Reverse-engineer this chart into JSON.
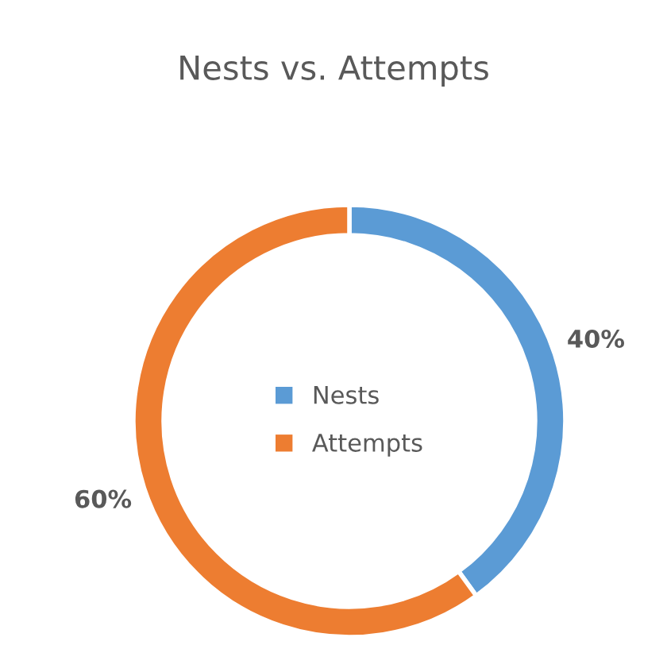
{
  "chart_data": {
    "type": "donut",
    "title": "Nests vs. Attempts",
    "categories": [
      "Nests",
      "Attempts"
    ],
    "values": [
      40,
      60
    ],
    "colors": [
      "#5b9bd5",
      "#ed7d31"
    ],
    "value_labels": [
      "40%",
      "60%"
    ],
    "legend": "center"
  }
}
